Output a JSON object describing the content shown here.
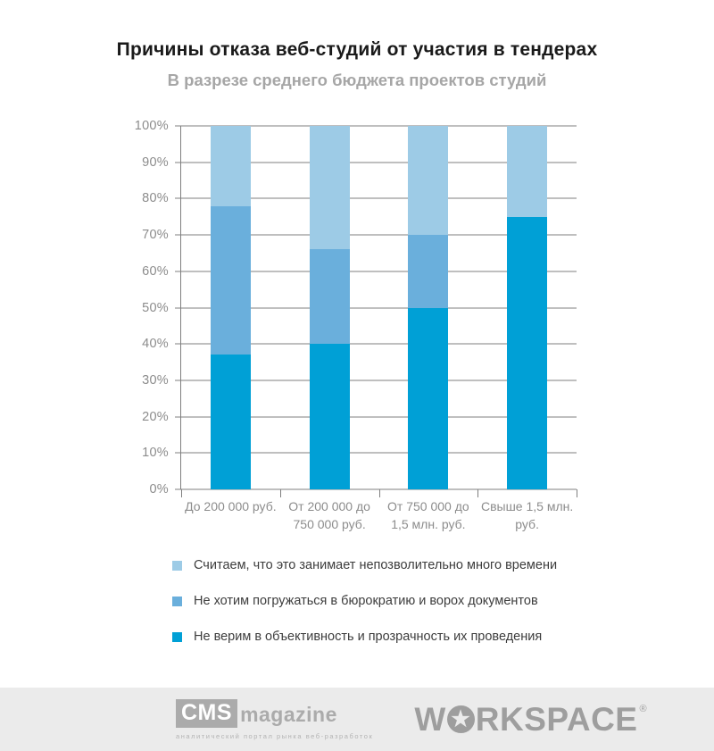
{
  "header": {
    "title": "Причины отказа веб-студий от участия в тендерах",
    "subtitle": "В разрезе среднего бюджета проектов студий"
  },
  "chart_data": {
    "type": "bar",
    "variant": "stacked-100-percent-column",
    "title": "Причины отказа веб-студий от участия в тендерах",
    "subtitle": "В разрезе среднего бюджета проектов студий",
    "categories": [
      "До 200 000 руб.",
      "От 200 000 до 750 000 руб.",
      "От 750 000 до 1,5 млн. руб.",
      "Свыше 1,5 млн. руб."
    ],
    "series": [
      {
        "name": "Не верим в объективность и прозрачность их проведения",
        "color": "#00a0d6",
        "values": [
          37,
          40,
          50,
          75
        ]
      },
      {
        "name": "Не хотим погружаться в бюрократию и ворох документов",
        "color": "#6aafdc",
        "values": [
          41,
          26,
          20,
          0
        ]
      },
      {
        "name": "Считаем, что это занимает непозволительно много времени",
        "color": "#9dcbe6",
        "values": [
          22,
          34,
          30,
          25
        ]
      }
    ],
    "stack_note": "series listed bottom-to-top; legend shown top-to-bottom reversed",
    "ylim": [
      0,
      100
    ],
    "ytick_step": 10,
    "ytick_suffix": "%",
    "grid": true,
    "legend_position": "bottom-left",
    "colors": {
      "gridline": "#7f7f7f",
      "axis_text": "#8c8c8c",
      "legend_text": "#3d3d3d"
    }
  },
  "footer": {
    "cms_box": "CMS",
    "cms_magazine": "magazine",
    "cms_tagline": "аналитический портал рынка веб-разработок",
    "ws_prefix": "W",
    "ws_star_glyph": "★",
    "ws_suffix": "RKSPACE",
    "ws_reg": "®",
    "background": "#ebebeb"
  }
}
